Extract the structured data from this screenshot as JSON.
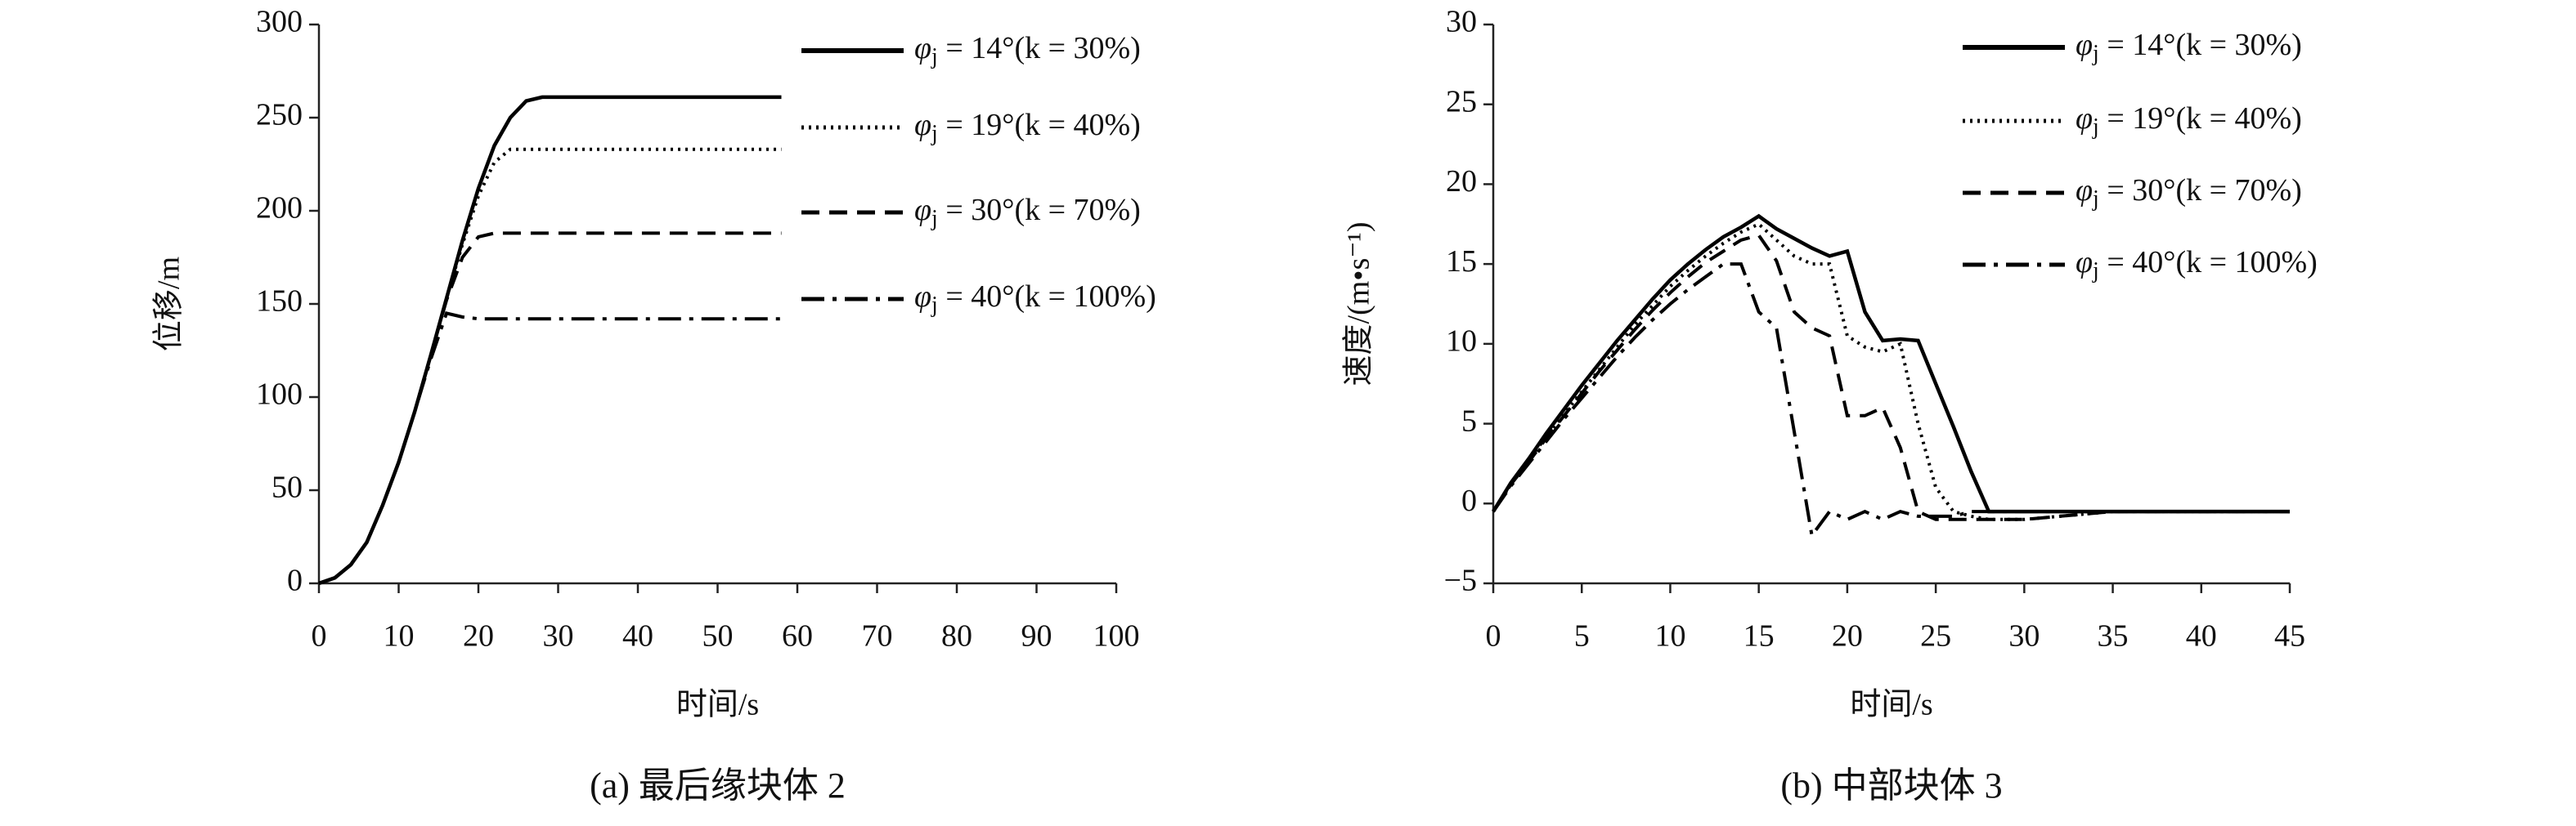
{
  "chart_data": [
    {
      "type": "line",
      "caption": "(a) 最后缘块体 2",
      "xlabel": "时间/s",
      "ylabel": "位移/m",
      "xlim": [
        0,
        100
      ],
      "xticks": [
        0,
        10,
        20,
        30,
        40,
        50,
        60,
        70,
        80,
        90,
        100
      ],
      "ylim": [
        0,
        300
      ],
      "yticks": [
        0,
        50,
        100,
        150,
        200,
        250,
        300
      ],
      "grid": false,
      "legend": "upper right",
      "x": [
        0,
        2,
        4,
        6,
        8,
        10,
        12,
        14,
        16,
        18,
        20,
        22,
        24,
        26,
        28,
        30,
        35,
        40,
        45,
        50,
        55,
        58
      ],
      "series": [
        {
          "name": "φj = 14°(k = 30%)",
          "color": "#000000",
          "dash": "solid",
          "values": [
            0,
            3,
            10,
            22,
            42,
            65,
            92,
            122,
            153,
            184,
            212,
            235,
            250,
            259,
            261,
            261,
            261,
            261,
            261,
            261,
            261,
            261
          ]
        },
        {
          "name": "φj = 19°(k = 40%)",
          "color": "#000000",
          "dash": "dotted",
          "values": [
            0,
            3,
            10,
            22,
            42,
            65,
            92,
            122,
            153,
            182,
            208,
            226,
            233,
            233,
            233,
            233,
            233,
            233,
            233,
            233,
            233,
            233
          ]
        },
        {
          "name": "φj = 30°(k = 70%)",
          "color": "#000000",
          "dash": "dashed",
          "values": [
            0,
            3,
            10,
            22,
            42,
            65,
            92,
            122,
            152,
            175,
            186,
            188,
            188,
            188,
            188,
            188,
            188,
            188,
            188,
            188,
            188,
            188
          ]
        },
        {
          "name": "φj = 40°(k = 100%)",
          "color": "#000000",
          "dash": "dashdot",
          "values": [
            0,
            3,
            10,
            22,
            42,
            65,
            92,
            120,
            145,
            143,
            142,
            142,
            142,
            142,
            142,
            142,
            142,
            142,
            142,
            142,
            142,
            142
          ]
        }
      ]
    },
    {
      "type": "line",
      "caption": "(b) 中部块体 3",
      "xlabel": "时间/s",
      "ylabel": "速度/(m•s⁻¹)",
      "xlim": [
        0,
        45
      ],
      "xticks": [
        0,
        5,
        10,
        15,
        20,
        25,
        30,
        35,
        40,
        45
      ],
      "ylim": [
        -5,
        30
      ],
      "yticks": [
        {
          "value": -5,
          "label": "−5"
        },
        0,
        5,
        10,
        15,
        20,
        25,
        30
      ],
      "grid": false,
      "legend": "upper right",
      "x": [
        0,
        1,
        2,
        3,
        4,
        5,
        6,
        7,
        8,
        9,
        10,
        11,
        12,
        13,
        14,
        15,
        16,
        17,
        18,
        19,
        20,
        21,
        22,
        23,
        24,
        25,
        26,
        27,
        28,
        29,
        30,
        35,
        40,
        45
      ],
      "series": [
        {
          "name": "φj = 14°(k = 30%)",
          "color": "#000000",
          "dash": "solid",
          "values": [
            -0.5,
            1.3,
            2.8,
            4.4,
            5.9,
            7.4,
            8.8,
            10.2,
            11.5,
            12.8,
            14,
            15,
            15.9,
            16.7,
            17.3,
            18,
            17.2,
            16.6,
            16,
            15.5,
            15.8,
            12,
            10.2,
            10.3,
            10.2,
            7.5,
            4.8,
            2,
            -0.5,
            -0.5,
            -0.5,
            -0.5,
            -0.5,
            -0.5
          ]
        },
        {
          "name": "φj = 19°(k = 40%)",
          "color": "#000000",
          "dash": "dotted",
          "values": [
            -0.5,
            1.2,
            2.7,
            4.2,
            5.6,
            7,
            8.4,
            9.8,
            11.2,
            12.4,
            13.6,
            14.6,
            15.5,
            16.3,
            17,
            17.5,
            16.5,
            15.5,
            15,
            15,
            10.5,
            9.8,
            9.5,
            10,
            5,
            1,
            -0.5,
            -0.8,
            -1,
            -1,
            -1,
            -0.5,
            -0.5,
            -0.5
          ]
        },
        {
          "name": "φj = 30°(k = 70%)",
          "color": "#000000",
          "dash": "dashed",
          "values": [
            -0.5,
            1.2,
            2.6,
            4.1,
            5.5,
            6.9,
            8.3,
            9.6,
            10.9,
            12.1,
            13.2,
            14.2,
            15.1,
            15.8,
            16.5,
            16.8,
            15.2,
            12,
            11,
            10.5,
            5.5,
            5.5,
            6,
            3.5,
            -0.5,
            -1,
            -1,
            -1,
            -1,
            -1,
            -1,
            -0.5,
            -0.5,
            -0.5
          ]
        },
        {
          "name": "φj = 40°(k = 100%)",
          "color": "#000000",
          "dash": "dashdot",
          "values": [
            -0.5,
            1.1,
            2.5,
            3.9,
            5.3,
            6.6,
            7.9,
            9.2,
            10.4,
            11.5,
            12.5,
            13.4,
            14.2,
            15,
            15,
            12,
            11,
            4.5,
            -2,
            -0.5,
            -1,
            -0.5,
            -1,
            -0.5,
            -0.8,
            -0.8,
            -0.8,
            -0.5,
            -0.5,
            -0.5,
            -0.5,
            -0.5,
            -0.5,
            -0.5
          ]
        }
      ]
    }
  ]
}
